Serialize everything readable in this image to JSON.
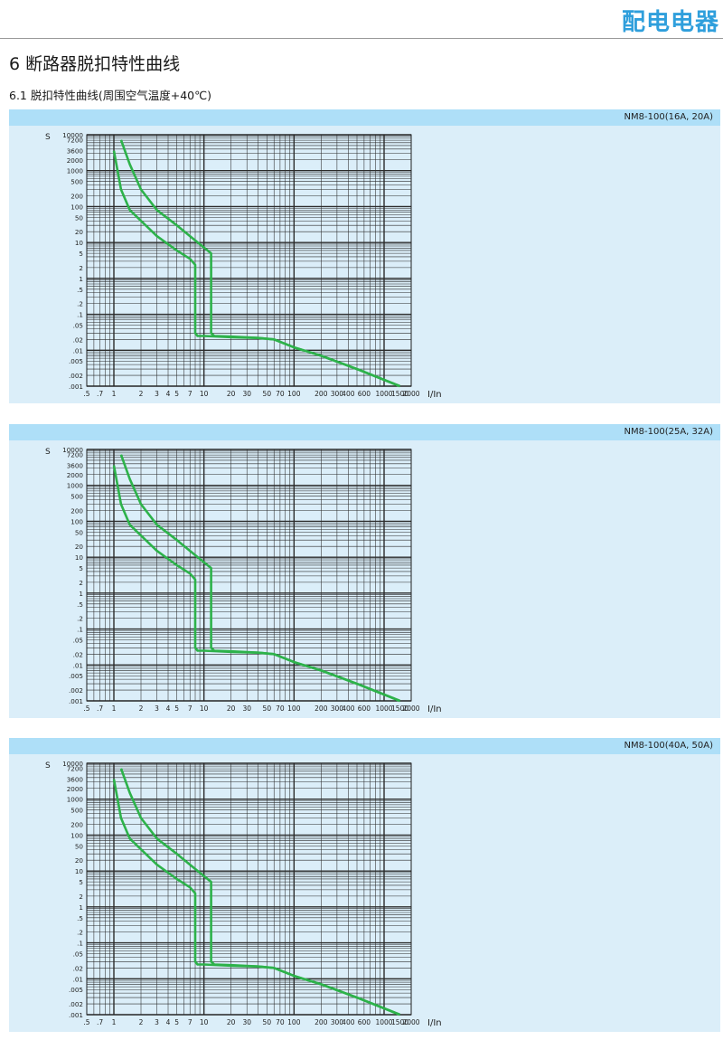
{
  "header": {
    "brand": "配电电器",
    "section_title": "6 断路器脱扣特性曲线",
    "sub_title": "6.1 脱扣特性曲线(周围空气温度+40℃)"
  },
  "colors": {
    "curve": "#2db24a",
    "panel_bg": "#dbeef9",
    "panel_header": "#aedff8",
    "brand": "#2f9fdc"
  },
  "chart_data": [
    {
      "type": "line",
      "title": "NM8-100(16A, 20A)",
      "ylabel": "S",
      "xlabel": "I/In",
      "xscale": "log",
      "yscale": "log",
      "xlim": [
        0.5,
        2000
      ],
      "ylim": [
        0.001,
        10000
      ],
      "grid": true,
      "y_tick_labels": [
        "10000",
        "7200",
        "3600",
        "2000",
        "1000",
        "500",
        "200",
        "100",
        "50",
        "20",
        "10",
        "5",
        "2",
        "1",
        ".5",
        ".2",
        ".1",
        ".05",
        ".02",
        ".01",
        ".005",
        ".002",
        ".001"
      ],
      "y_tick_values": [
        10000,
        7200,
        3600,
        2000,
        1000,
        500,
        200,
        100,
        50,
        20,
        10,
        5,
        2,
        1,
        0.5,
        0.2,
        0.1,
        0.05,
        0.02,
        0.01,
        0.005,
        0.002,
        0.001
      ],
      "x_tick_labels": [
        ".5",
        ".7",
        "1",
        "2",
        "3",
        "4",
        "5",
        "7",
        "10",
        "20",
        "30",
        "50",
        "70",
        "100",
        "200",
        "300",
        "400",
        "600",
        "1000",
        "1500",
        "2000"
      ],
      "x_tick_values": [
        0.5,
        0.7,
        1,
        2,
        3,
        4,
        5,
        7,
        10,
        20,
        30,
        50,
        70,
        100,
        200,
        300,
        400,
        600,
        1000,
        1500,
        2000
      ],
      "series": [
        {
          "values": [
            [
              1.0,
              3600
            ],
            [
              1.2,
              300
            ],
            [
              1.5,
              80
            ],
            [
              2,
              40
            ],
            [
              3,
              15
            ],
            [
              5,
              6
            ],
            [
              7,
              3.5
            ],
            [
              8,
              2.4
            ],
            [
              8,
              0.03
            ],
            [
              8.5,
              0.025
            ],
            [
              10,
              0.025
            ],
            [
              20,
              0.023
            ],
            [
              40,
              0.022
            ],
            [
              60,
              0.02
            ],
            [
              100,
              0.012
            ],
            [
              200,
              0.007
            ],
            [
              500,
              0.003
            ],
            [
              1000,
              0.0015
            ],
            [
              1500,
              0.001
            ]
          ]
        },
        {
          "values": [
            [
              1.2,
              7200
            ],
            [
              1.5,
              1500
            ],
            [
              2,
              300
            ],
            [
              3,
              80
            ],
            [
              5,
              30
            ],
            [
              7,
              15
            ],
            [
              9,
              9
            ],
            [
              12,
              5
            ],
            [
              12,
              0.03
            ],
            [
              13,
              0.025
            ],
            [
              20,
              0.024
            ],
            [
              40,
              0.022
            ],
            [
              60,
              0.02
            ],
            [
              100,
              0.012
            ],
            [
              200,
              0.007
            ],
            [
              500,
              0.003
            ],
            [
              1000,
              0.0015
            ],
            [
              1500,
              0.001
            ]
          ]
        }
      ]
    },
    {
      "type": "line",
      "title": "NM8-100(25A, 32A)",
      "ylabel": "S",
      "xlabel": "I/In",
      "xscale": "log",
      "yscale": "log",
      "xlim": [
        0.5,
        2000
      ],
      "ylim": [
        0.001,
        10000
      ],
      "grid": true,
      "y_tick_labels": [
        "10000",
        "7200",
        "3600",
        "2000",
        "1000",
        "500",
        "200",
        "100",
        "50",
        "20",
        "10",
        "5",
        "2",
        "1",
        ".5",
        ".2",
        ".1",
        ".05",
        ".02",
        ".01",
        ".005",
        ".002",
        ".001"
      ],
      "y_tick_values": [
        10000,
        7200,
        3600,
        2000,
        1000,
        500,
        200,
        100,
        50,
        20,
        10,
        5,
        2,
        1,
        0.5,
        0.2,
        0.1,
        0.05,
        0.02,
        0.01,
        0.005,
        0.002,
        0.001
      ],
      "x_tick_labels": [
        ".5",
        ".7",
        "1",
        "2",
        "3",
        "4",
        "5",
        "7",
        "10",
        "20",
        "30",
        "50",
        "70",
        "100",
        "200",
        "300",
        "400",
        "600",
        "1000",
        "1500",
        "2000"
      ],
      "x_tick_values": [
        0.5,
        0.7,
        1,
        2,
        3,
        4,
        5,
        7,
        10,
        20,
        30,
        50,
        70,
        100,
        200,
        300,
        400,
        600,
        1000,
        1500,
        2000
      ],
      "series": [
        {
          "values": [
            [
              1.0,
              3600
            ],
            [
              1.2,
              300
            ],
            [
              1.5,
              80
            ],
            [
              2,
              40
            ],
            [
              3,
              15
            ],
            [
              5,
              6
            ],
            [
              7,
              3.5
            ],
            [
              8,
              2.4
            ],
            [
              8,
              0.03
            ],
            [
              8.5,
              0.025
            ],
            [
              10,
              0.025
            ],
            [
              20,
              0.023
            ],
            [
              40,
              0.022
            ],
            [
              60,
              0.02
            ],
            [
              100,
              0.012
            ],
            [
              200,
              0.007
            ],
            [
              500,
              0.003
            ],
            [
              1000,
              0.0015
            ],
            [
              1500,
              0.001
            ]
          ]
        },
        {
          "values": [
            [
              1.2,
              7200
            ],
            [
              1.5,
              1500
            ],
            [
              2,
              300
            ],
            [
              3,
              80
            ],
            [
              5,
              30
            ],
            [
              7,
              15
            ],
            [
              9,
              9
            ],
            [
              12,
              5
            ],
            [
              12,
              0.03
            ],
            [
              13,
              0.025
            ],
            [
              20,
              0.024
            ],
            [
              40,
              0.022
            ],
            [
              60,
              0.02
            ],
            [
              100,
              0.012
            ],
            [
              200,
              0.007
            ],
            [
              500,
              0.003
            ],
            [
              1000,
              0.0015
            ],
            [
              1500,
              0.001
            ]
          ]
        }
      ]
    },
    {
      "type": "line",
      "title": "NM8-100(40A, 50A)",
      "ylabel": "S",
      "xlabel": "I/In",
      "xscale": "log",
      "yscale": "log",
      "xlim": [
        0.5,
        2000
      ],
      "ylim": [
        0.001,
        10000
      ],
      "grid": true,
      "y_tick_labels": [
        "10000",
        "7200",
        "3600",
        "2000",
        "1000",
        "500",
        "200",
        "100",
        "50",
        "20",
        "10",
        "5",
        "2",
        "1",
        ".5",
        ".2",
        ".1",
        ".05",
        ".02",
        ".01",
        ".005",
        ".002",
        ".001"
      ],
      "y_tick_values": [
        10000,
        7200,
        3600,
        2000,
        1000,
        500,
        200,
        100,
        50,
        20,
        10,
        5,
        2,
        1,
        0.5,
        0.2,
        0.1,
        0.05,
        0.02,
        0.01,
        0.005,
        0.002,
        0.001
      ],
      "x_tick_labels": [
        ".5",
        ".7",
        "1",
        "2",
        "3",
        "4",
        "5",
        "7",
        "10",
        "20",
        "30",
        "50",
        "70",
        "100",
        "200",
        "300",
        "400",
        "600",
        "1000",
        "1500",
        "2000"
      ],
      "x_tick_values": [
        0.5,
        0.7,
        1,
        2,
        3,
        4,
        5,
        7,
        10,
        20,
        30,
        50,
        70,
        100,
        200,
        300,
        400,
        600,
        1000,
        1500,
        2000
      ],
      "series": [
        {
          "values": [
            [
              1.0,
              3600
            ],
            [
              1.2,
              300
            ],
            [
              1.5,
              80
            ],
            [
              2,
              40
            ],
            [
              3,
              15
            ],
            [
              5,
              6
            ],
            [
              7,
              3.5
            ],
            [
              8,
              2.4
            ],
            [
              8,
              0.03
            ],
            [
              8.5,
              0.025
            ],
            [
              10,
              0.025
            ],
            [
              20,
              0.023
            ],
            [
              40,
              0.022
            ],
            [
              60,
              0.02
            ],
            [
              100,
              0.012
            ],
            [
              200,
              0.007
            ],
            [
              500,
              0.003
            ],
            [
              1000,
              0.0015
            ],
            [
              1500,
              0.001
            ]
          ]
        },
        {
          "values": [
            [
              1.2,
              7200
            ],
            [
              1.5,
              1500
            ],
            [
              2,
              300
            ],
            [
              3,
              80
            ],
            [
              5,
              30
            ],
            [
              7,
              15
            ],
            [
              9,
              9
            ],
            [
              12,
              5
            ],
            [
              12,
              0.03
            ],
            [
              13,
              0.025
            ],
            [
              20,
              0.024
            ],
            [
              40,
              0.022
            ],
            [
              60,
              0.02
            ],
            [
              100,
              0.012
            ],
            [
              200,
              0.007
            ],
            [
              500,
              0.003
            ],
            [
              1000,
              0.0015
            ],
            [
              1500,
              0.001
            ]
          ]
        }
      ]
    }
  ]
}
